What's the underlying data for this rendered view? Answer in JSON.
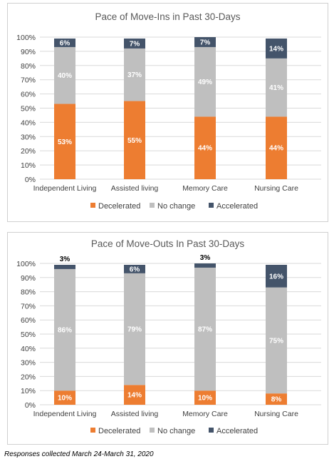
{
  "colors": {
    "decelerated": "#ED7D31",
    "no_change": "#BFBFBF",
    "accelerated": "#44546A",
    "grid": "#D9D9D9"
  },
  "chart_data": [
    {
      "type": "bar",
      "stacked": true,
      "title": "Pace of Move-Ins in Past 30-Days",
      "categories": [
        "Independent Living",
        "Assisted living",
        "Memory Care",
        "Nursing Care"
      ],
      "series": [
        {
          "name": "Decelerated",
          "values": [
            53,
            55,
            44,
            44
          ],
          "labels": [
            "53%",
            "55%",
            "44%",
            "44%"
          ]
        },
        {
          "name": "No change",
          "values": [
            40,
            37,
            49,
            41
          ],
          "labels": [
            "40%",
            "37%",
            "49%",
            "41%"
          ]
        },
        {
          "name": "Accelerated",
          "values": [
            6,
            7,
            7,
            14
          ],
          "labels": [
            "6%",
            "7%",
            "7%",
            "14%"
          ]
        }
      ],
      "ylim": [
        0,
        100
      ],
      "yticks": [
        "0%",
        "10%",
        "20%",
        "30%",
        "40%",
        "50%",
        "60%",
        "70%",
        "80%",
        "90%",
        "100%"
      ],
      "grid": true,
      "legend": "bottom"
    },
    {
      "type": "bar",
      "stacked": true,
      "title": "Pace of Move-Outs In Past 30-Days",
      "categories": [
        "Independent Living",
        "Assisted living",
        "Memory Care",
        "Nursing Care"
      ],
      "series": [
        {
          "name": "Decelerated",
          "values": [
            10,
            14,
            10,
            8
          ],
          "labels": [
            "10%",
            "14%",
            "10%",
            "8%"
          ]
        },
        {
          "name": "No change",
          "values": [
            86,
            79,
            87,
            75
          ],
          "labels": [
            "86%",
            "79%",
            "87%",
            "75%"
          ]
        },
        {
          "name": "Accelerated",
          "values": [
            3,
            6,
            3,
            16
          ],
          "labels": [
            "3%",
            "6%",
            "3%",
            "16%"
          ]
        }
      ],
      "ylim": [
        0,
        100
      ],
      "yticks": [
        "0%",
        "10%",
        "20%",
        "30%",
        "40%",
        "50%",
        "60%",
        "70%",
        "80%",
        "90%",
        "100%"
      ],
      "grid": true,
      "legend": "bottom"
    }
  ],
  "footnote": "Responses collected March 24-March 31, 2020"
}
